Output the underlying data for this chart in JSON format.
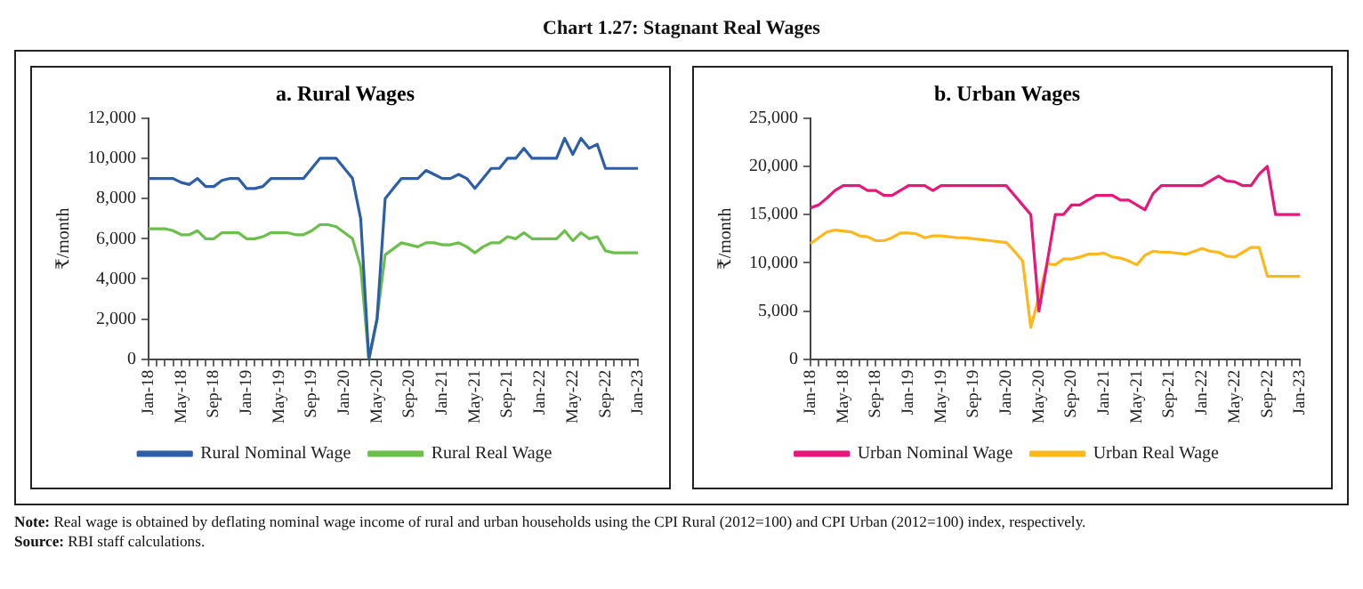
{
  "chart_data": [
    {
      "type": "other",
      "title": "Chart 1.27: Stagnant Real Wages",
      "annotations": [
        "Note: Real wage is obtained by deflating nominal wage income of rural and urban households using the CPI Rural (2012=100) and CPI Urban (2012=100) index, respectively.",
        "Source: RBI staff calculations."
      ]
    },
    {
      "type": "line",
      "title": "a. Rural Wages",
      "ylabel": "₹/month",
      "categories": [
        "Jan-18",
        null,
        null,
        null,
        "May-18",
        null,
        null,
        null,
        "Sep-18",
        null,
        null,
        null,
        "Jan-19",
        null,
        null,
        null,
        "May-19",
        null,
        null,
        null,
        "Sep-19",
        null,
        null,
        null,
        "Jan-20",
        null,
        null,
        null,
        "May-20",
        null,
        null,
        null,
        "Sep-20",
        null,
        null,
        null,
        "Jan-21",
        null,
        null,
        null,
        "May-21",
        null,
        null,
        null,
        "Sep-21",
        null,
        null,
        null,
        "Jan-22",
        null,
        null,
        null,
        "May-22",
        null,
        null,
        null,
        "Sep-22",
        null,
        null,
        null,
        "Jan-23"
      ],
      "series": [
        {
          "name": "Rural Nominal Wage",
          "color": "#2e5ea8",
          "values": [
            9000,
            9000,
            9000,
            9000,
            8800,
            8700,
            9000,
            8600,
            8600,
            8900,
            9000,
            9000,
            8500,
            8500,
            8600,
            9000,
            9000,
            9000,
            9000,
            9000,
            9500,
            10000,
            10000,
            10000,
            9500,
            9000,
            7000,
            0,
            2000,
            8000,
            8500,
            9000,
            9000,
            9000,
            9400,
            9200,
            9000,
            9000,
            9200,
            9000,
            8500,
            9000,
            9500,
            9500,
            10000,
            10000,
            10500,
            10000,
            10000,
            10000,
            10000,
            11000,
            10200,
            11000,
            10500,
            10700,
            9500,
            9500,
            9500,
            9500,
            9500
          ]
        },
        {
          "name": "Rural Real Wage",
          "color": "#6cbf4a",
          "values": [
            6500,
            6500,
            6500,
            6400,
            6200,
            6200,
            6400,
            6000,
            6000,
            6300,
            6300,
            6300,
            6000,
            6000,
            6100,
            6300,
            6300,
            6300,
            6200,
            6200,
            6400,
            6700,
            6700,
            6600,
            6300,
            6000,
            4600,
            0,
            2000,
            5200,
            5500,
            5800,
            5700,
            5600,
            5800,
            5800,
            5700,
            5700,
            5800,
            5600,
            5300,
            5600,
            5800,
            5800,
            6100,
            6000,
            6300,
            6000,
            6000,
            6000,
            6000,
            6400,
            5900,
            6300,
            6000,
            6100,
            5400,
            5300,
            5300,
            5300,
            5300
          ]
        }
      ],
      "ylim": [
        0,
        12000
      ],
      "yticks": [
        0,
        {
          "value": 2000,
          "label": "2,000"
        },
        {
          "value": 4000,
          "label": "4,000"
        },
        {
          "value": 6000,
          "label": "6,000"
        },
        {
          "value": 8000,
          "label": "8,000"
        },
        {
          "value": 10000,
          "label": "10,000"
        },
        {
          "value": 12000,
          "label": "12,000"
        }
      ],
      "grid": false,
      "legend": "bottom",
      "marker": "none",
      "line_style": "solid"
    },
    {
      "type": "line",
      "title": "b. Urban Wages",
      "ylabel": "₹/month",
      "categories": [
        "Jan-18",
        null,
        null,
        null,
        "May-18",
        null,
        null,
        null,
        "Sep-18",
        null,
        null,
        null,
        "Jan-19",
        null,
        null,
        null,
        "May-19",
        null,
        null,
        null,
        "Sep-19",
        null,
        null,
        null,
        "Jan-20",
        null,
        null,
        null,
        "May-20",
        null,
        null,
        null,
        "Sep-20",
        null,
        null,
        null,
        "Jan-21",
        null,
        null,
        null,
        "May-21",
        null,
        null,
        null,
        "Sep-21",
        null,
        null,
        null,
        "Jan-22",
        null,
        null,
        null,
        "May-22",
        null,
        null,
        null,
        "Sep-22",
        null,
        null,
        null,
        "Jan-23"
      ],
      "series": [
        {
          "name": "Urban Nominal Wage",
          "color": "#e6197a",
          "values": [
            15700,
            16000,
            16700,
            17500,
            18000,
            18000,
            18000,
            17500,
            17500,
            17000,
            17000,
            17500,
            18000,
            18000,
            18000,
            17500,
            18000,
            18000,
            18000,
            18000,
            18000,
            18000,
            18000,
            18000,
            18000,
            17000,
            16000,
            15000,
            5000,
            10000,
            15000,
            15000,
            16000,
            16000,
            16500,
            17000,
            17000,
            17000,
            16500,
            16500,
            16000,
            15500,
            17200,
            18000,
            18000,
            18000,
            18000,
            18000,
            18000,
            18500,
            19000,
            18500,
            18400,
            18000,
            18000,
            19200,
            20000,
            15000,
            15000,
            15000,
            15000
          ]
        },
        {
          "name": "Urban Real Wage",
          "color": "#ffb81c",
          "values": [
            12000,
            12600,
            13200,
            13400,
            13300,
            13200,
            12800,
            12700,
            12300,
            12300,
            12600,
            13100,
            13100,
            13000,
            12600,
            12800,
            12800,
            12700,
            12600,
            12600,
            12500,
            12400,
            12300,
            12200,
            12100,
            11200,
            10200,
            3300,
            6500,
            9900,
            9800,
            10400,
            10400,
            10600,
            10900,
            10900,
            11000,
            10600,
            10500,
            10200,
            9800,
            10800,
            11200,
            11100,
            11100,
            11000,
            10900,
            11200,
            11500,
            11200,
            11100,
            10700,
            10600,
            11100,
            11600,
            11600,
            8600,
            8600,
            8600,
            8600,
            8600
          ]
        }
      ],
      "ylim": [
        0,
        25000
      ],
      "yticks": [
        0,
        {
          "value": 5000,
          "label": "5,000"
        },
        {
          "value": 10000,
          "label": "10,000"
        },
        {
          "value": 15000,
          "label": "15,000"
        },
        {
          "value": 20000,
          "label": "20,000"
        },
        {
          "value": 25000,
          "label": "25,000"
        }
      ],
      "grid": false,
      "legend": "bottom",
      "marker": "none",
      "line_style": "solid"
    }
  ]
}
